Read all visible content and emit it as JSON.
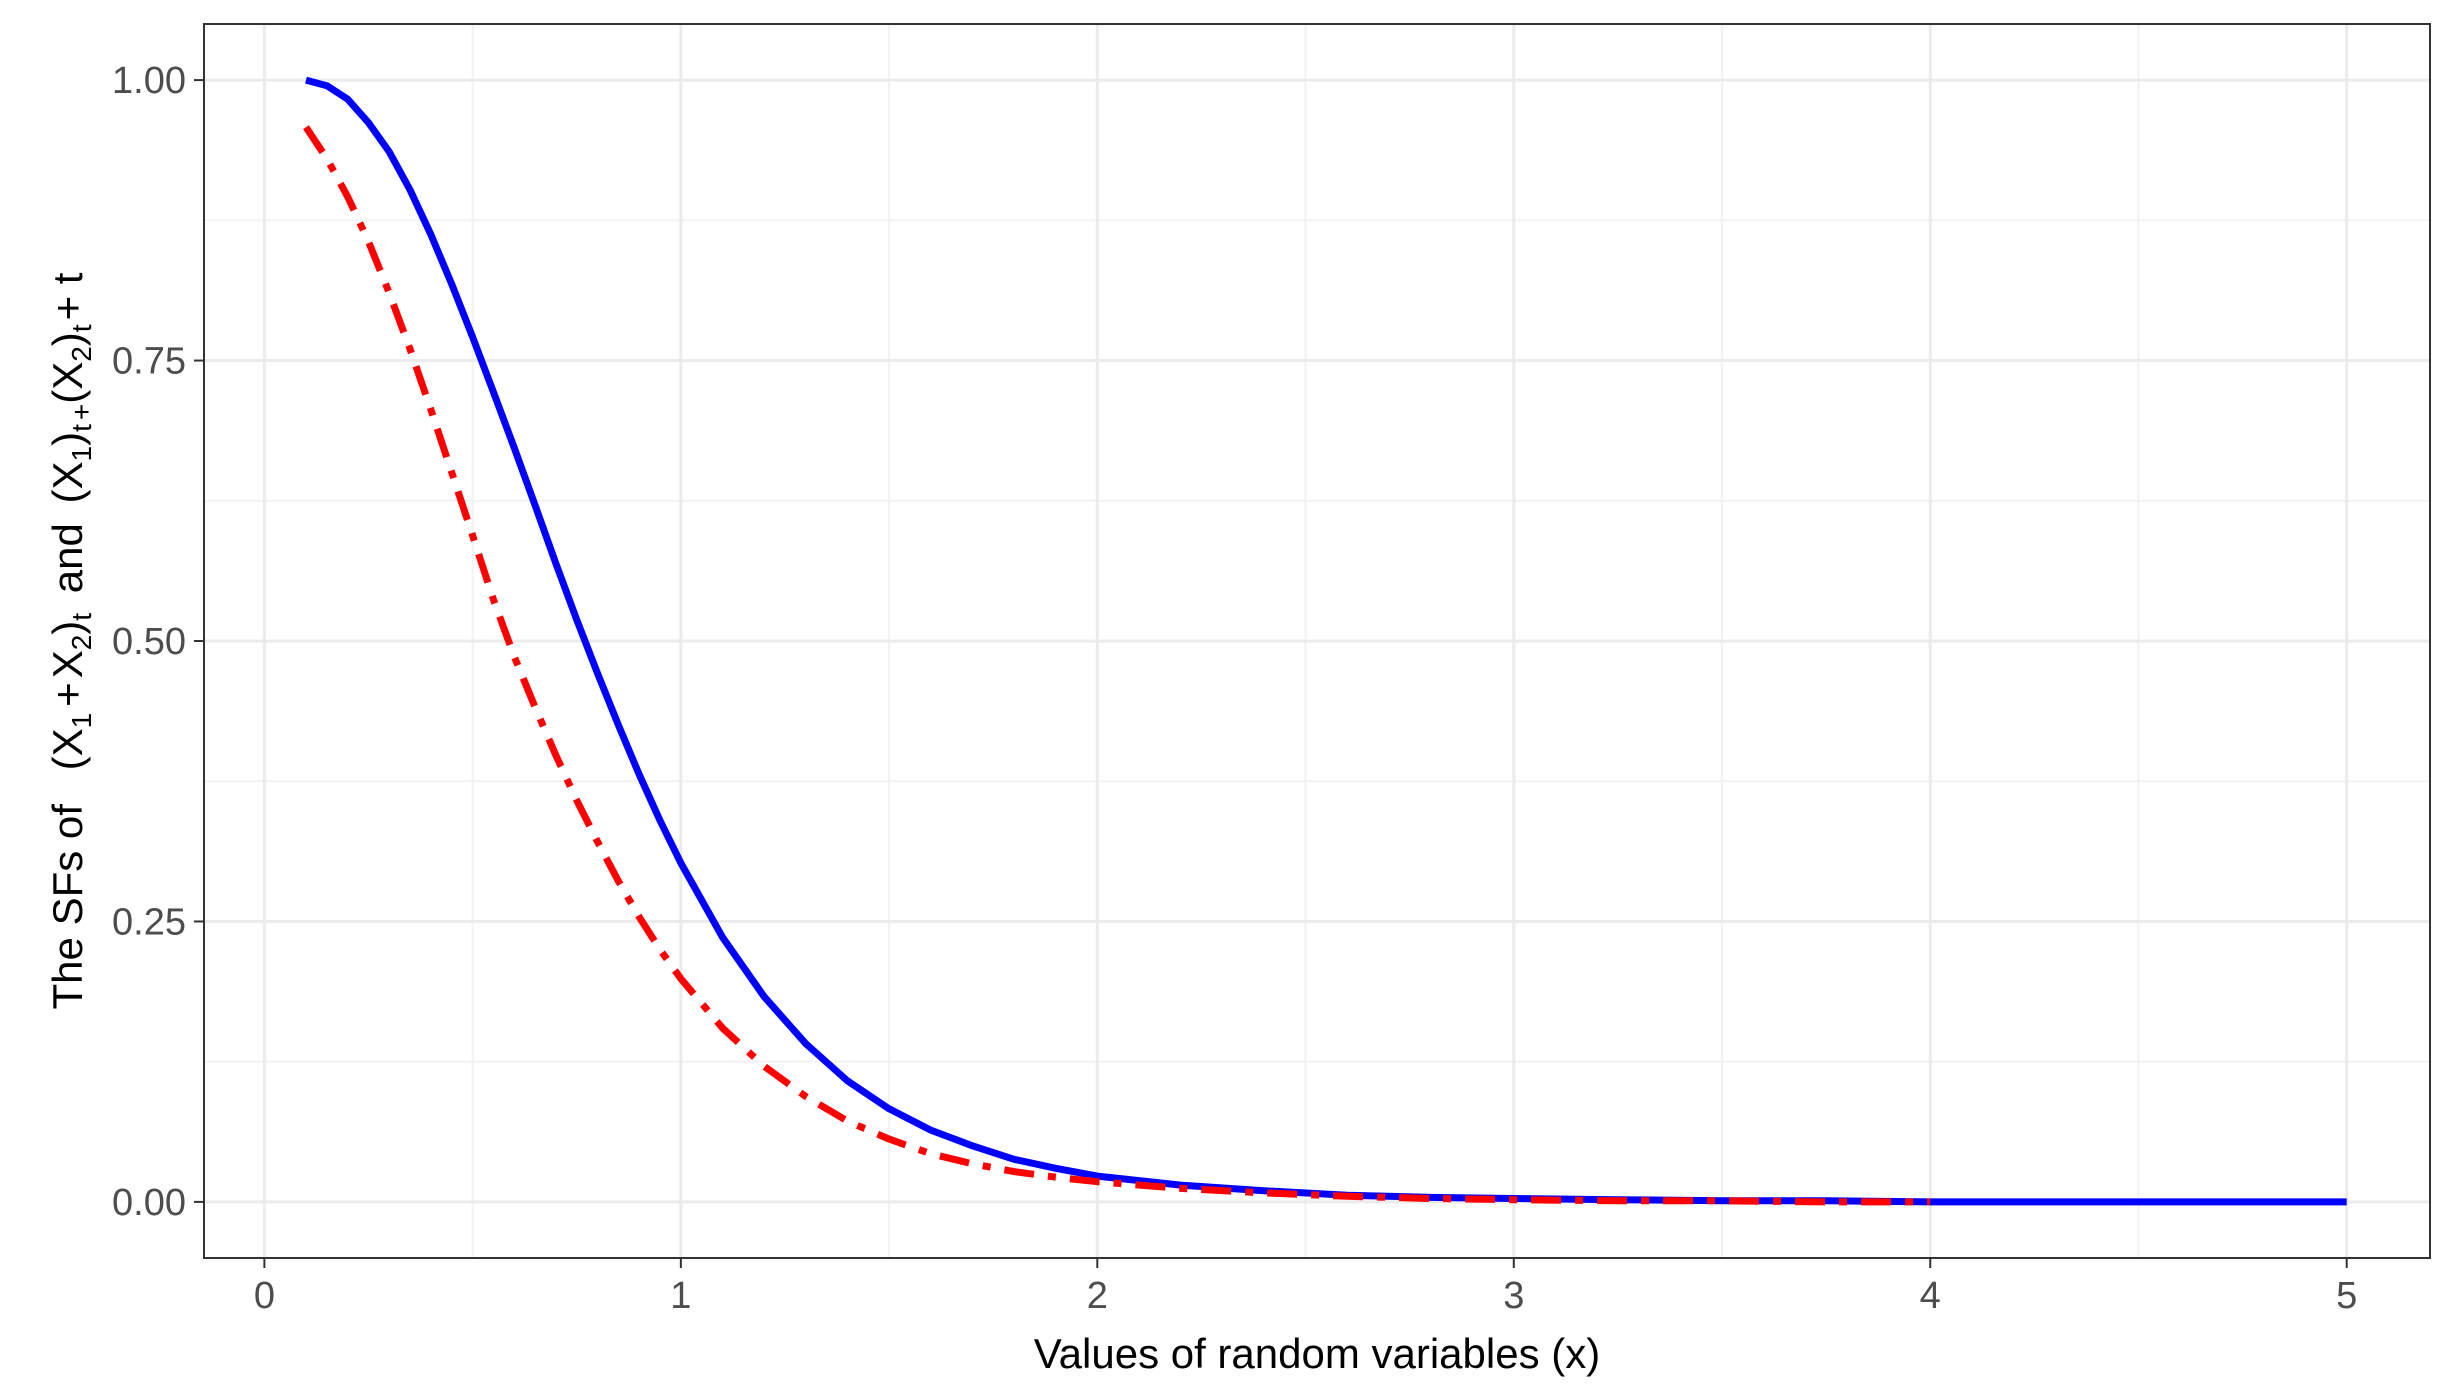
{
  "chart_data": {
    "type": "line",
    "title": "",
    "xlabel": "Values of random variables (x)",
    "ylabel": {
      "prefix": "The SFs of",
      "term1": {
        "open": "(X",
        "sub1": "1",
        "plus": "+",
        "var2": "X",
        "sub2": "2",
        "close": ")",
        "sub_t": "t"
      },
      "and": "and",
      "term2": {
        "open": "(X",
        "sub1": "1",
        "close1": ")",
        "sub_t1": "t",
        "plus": "+",
        "open2": "(X",
        "sub2": "2",
        "close2": ")",
        "sub_t2": "t",
        "tail": "+ t"
      }
    },
    "xlim": [
      -0.145,
      5.2
    ],
    "ylim": [
      -0.05,
      1.05
    ],
    "x_ticks": [
      0,
      1,
      2,
      3,
      4,
      5
    ],
    "x_tick_labels": [
      "0",
      "1",
      "2",
      "3",
      "4",
      "5"
    ],
    "y_ticks": [
      0,
      0.25,
      0.5,
      0.75,
      1.0
    ],
    "y_tick_labels": [
      "0.00",
      "0.25",
      "0.50",
      "0.75",
      "1.00"
    ],
    "grid": true,
    "legend": "none",
    "series": [
      {
        "color": "#0000ff",
        "linestyle": "solid",
        "x": [
          0.1,
          0.15,
          0.2,
          0.25,
          0.3,
          0.35,
          0.4,
          0.45,
          0.5,
          0.55,
          0.6,
          0.65,
          0.7,
          0.75,
          0.8,
          0.85,
          0.9,
          0.95,
          1.0,
          1.1,
          1.2,
          1.3,
          1.4,
          1.5,
          1.6,
          1.7,
          1.8,
          1.9,
          2.0,
          2.2,
          2.4,
          2.6,
          2.8,
          3.0,
          3.25,
          3.5,
          3.75,
          4.0,
          4.5,
          5.0
        ],
        "y": [
          1.0,
          0.995,
          0.983,
          0.962,
          0.936,
          0.902,
          0.862,
          0.818,
          0.771,
          0.722,
          0.672,
          0.621,
          0.569,
          0.519,
          0.471,
          0.425,
          0.381,
          0.34,
          0.302,
          0.236,
          0.183,
          0.141,
          0.108,
          0.083,
          0.064,
          0.05,
          0.038,
          0.03,
          0.023,
          0.015,
          0.01,
          0.006,
          0.004,
          0.003,
          0.002,
          0.001,
          0.001,
          0.0,
          0.0,
          0.0
        ]
      },
      {
        "color": "#ff0000",
        "linestyle": "dashdot",
        "x": [
          0.1,
          0.15,
          0.2,
          0.25,
          0.3,
          0.35,
          0.4,
          0.45,
          0.5,
          0.55,
          0.6,
          0.65,
          0.7,
          0.75,
          0.8,
          0.85,
          0.9,
          0.95,
          1.0,
          1.1,
          1.2,
          1.3,
          1.4,
          1.5,
          1.6,
          1.7,
          1.8,
          1.9,
          2.0,
          2.2,
          2.4,
          2.6,
          2.8,
          3.0,
          3.25,
          3.5,
          3.75,
          4.0
        ],
        "y": [
          0.958,
          0.93,
          0.896,
          0.856,
          0.81,
          0.76,
          0.706,
          0.65,
          0.594,
          0.537,
          0.486,
          0.441,
          0.398,
          0.358,
          0.321,
          0.286,
          0.254,
          0.225,
          0.199,
          0.155,
          0.121,
          0.094,
          0.072,
          0.056,
          0.043,
          0.034,
          0.027,
          0.022,
          0.018,
          0.012,
          0.008,
          0.005,
          0.003,
          0.002,
          0.001,
          0.001,
          0.0,
          0.0
        ]
      }
    ]
  }
}
